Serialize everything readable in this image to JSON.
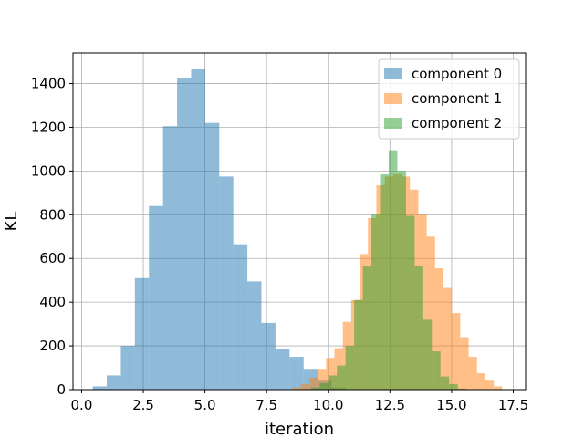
{
  "chart_data": {
    "type": "histogram",
    "xlabel": "iteration",
    "ylabel": "KL",
    "xlim": [
      -0.35,
      18.0
    ],
    "ylim": [
      0,
      1540
    ],
    "x_ticks": [
      0.0,
      2.5,
      5.0,
      7.5,
      10.0,
      12.5,
      15.0,
      17.5
    ],
    "x_tick_labels": [
      "0.0",
      "2.5",
      "5.0",
      "7.5",
      "10.0",
      "12.5",
      "15.0",
      "17.5"
    ],
    "y_ticks": [
      0,
      200,
      400,
      600,
      800,
      1000,
      1200,
      1400
    ],
    "y_tick_labels": [
      "0",
      "200",
      "400",
      "600",
      "800",
      "1000",
      "1200",
      "1400"
    ],
    "grid": true,
    "legend_position": "top-right",
    "series": [
      {
        "name": "component 0",
        "color": "#1f77b4",
        "alpha": 0.5,
        "bin_edges": [
          0.45,
          1.02,
          1.59,
          2.16,
          2.73,
          3.3,
          3.87,
          4.44,
          5.01,
          5.58,
          6.15,
          6.72,
          7.29,
          7.86,
          8.43,
          9.0,
          9.57,
          10.14,
          10.71
        ],
        "counts": [
          15,
          65,
          200,
          510,
          840,
          1205,
          1425,
          1465,
          1220,
          975,
          665,
          495,
          305,
          185,
          150,
          95,
          45,
          10
        ]
      },
      {
        "name": "component 1",
        "color": "#ff7f0e",
        "alpha": 0.5,
        "bin_edges": [
          8.55,
          8.89,
          9.23,
          9.57,
          9.91,
          10.25,
          10.59,
          10.93,
          11.27,
          11.61,
          11.95,
          12.29,
          12.63,
          12.97,
          13.31,
          13.65,
          13.99,
          14.33,
          14.67,
          15.01,
          15.35,
          15.69,
          16.03,
          16.37,
          16.71,
          17.05
        ],
        "counts": [
          10,
          25,
          55,
          95,
          145,
          190,
          310,
          410,
          620,
          785,
          935,
          975,
          985,
          975,
          915,
          800,
          700,
          555,
          465,
          350,
          240,
          150,
          75,
          45,
          15
        ]
      },
      {
        "name": "component 2",
        "color": "#2ca02c",
        "alpha": 0.5,
        "bin_edges": [
          9.3,
          9.65,
          10.0,
          10.35,
          10.7,
          11.05,
          11.4,
          11.75,
          12.1,
          12.45,
          12.8,
          13.15,
          13.5,
          13.85,
          14.2,
          14.55,
          14.9,
          15.25,
          15.6
        ],
        "counts": [
          10,
          30,
          65,
          110,
          200,
          410,
          565,
          800,
          985,
          1095,
          1000,
          795,
          565,
          320,
          175,
          60,
          25,
          5
        ]
      }
    ]
  }
}
